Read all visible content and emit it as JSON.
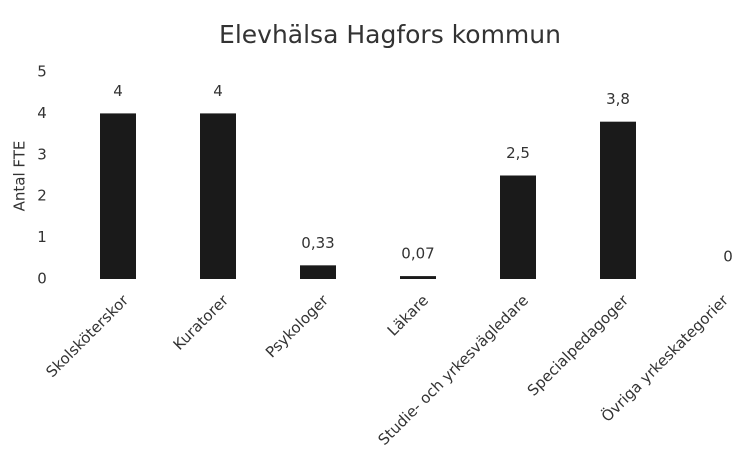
{
  "chart_data": {
    "type": "bar",
    "title": "Elevhälsa Hagfors kommun",
    "y_label": "Antal FTE",
    "categories": [
      "Skolsköterskor",
      "Kuratorer",
      "Psykologer",
      "Läkare",
      "Studie- och yrkesvägledare",
      "Specialpedagoger",
      "Övriga yrkeskategorier"
    ],
    "values": [
      4,
      4,
      0.33,
      0.07,
      2.5,
      3.8,
      0
    ],
    "value_labels": [
      "4",
      "4",
      "0,33",
      "0,07",
      "2,5",
      "3,8",
      "0"
    ],
    "color": "#1a1a1a",
    "ylim": [
      0,
      5
    ],
    "yticks": [
      0,
      1,
      2,
      3,
      4,
      5
    ],
    "grid": false
  }
}
